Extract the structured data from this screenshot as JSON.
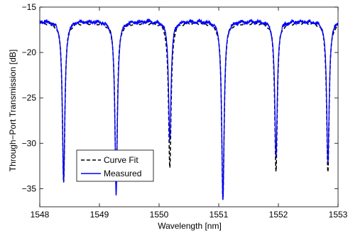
{
  "chart_data": {
    "type": "line",
    "xlabel": "Wavelength [nm]",
    "ylabel": "Through−Port Transmission [dB]",
    "xlim": [
      1548,
      1553
    ],
    "ylim": [
      -37,
      -15
    ],
    "x_ticks": [
      1548,
      1549,
      1550,
      1551,
      1552,
      1553
    ],
    "y_ticks": [
      -15,
      -20,
      -25,
      -30,
      -35
    ],
    "grid": false,
    "legend_position": "bottom-left",
    "baseline_db": -16.5,
    "resonances": [
      {
        "center_nm": 1548.4,
        "fit_min_db": -34.0,
        "measured_min_db": -34.2,
        "hwhm_nm": 0.025
      },
      {
        "center_nm": 1549.28,
        "fit_min_db": -34.5,
        "measured_min_db": -35.7,
        "hwhm_nm": 0.025
      },
      {
        "center_nm": 1550.18,
        "fit_min_db": -32.7,
        "measured_min_db": -29.5,
        "hwhm_nm": 0.025
      },
      {
        "center_nm": 1551.07,
        "fit_min_db": -36.0,
        "measured_min_db": -36.4,
        "hwhm_nm": 0.025
      },
      {
        "center_nm": 1551.96,
        "fit_min_db": -32.8,
        "measured_min_db": -31.5,
        "hwhm_nm": 0.025
      },
      {
        "center_nm": 1552.83,
        "fit_min_db": -33.0,
        "measured_min_db": -32.2,
        "hwhm_nm": 0.025
      }
    ],
    "series": [
      {
        "name": "Curve Fit",
        "color": "#000000",
        "style": "dashed"
      },
      {
        "name": "Measured",
        "color": "#0000ff",
        "style": "solid"
      }
    ]
  }
}
